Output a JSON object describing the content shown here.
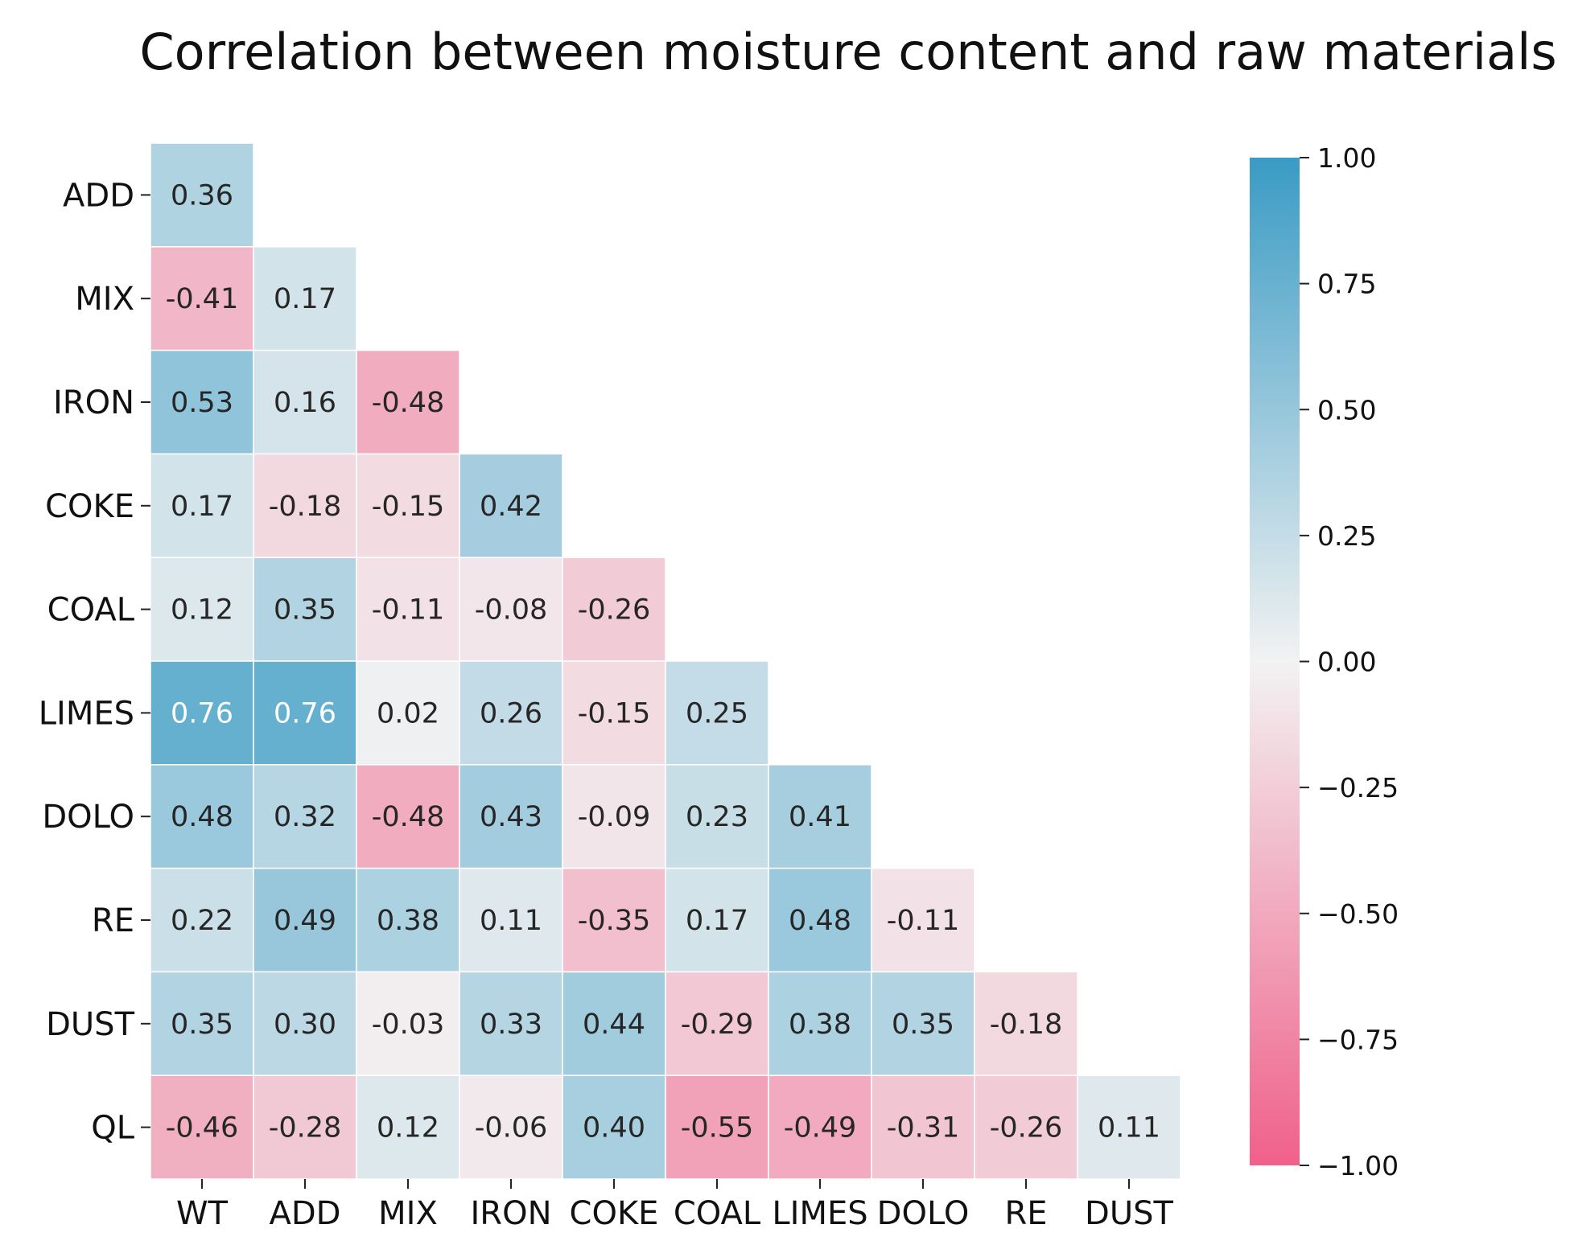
{
  "chart_data": {
    "type": "heatmap",
    "title": "Correlation between moisture content and raw materials",
    "xlabel": "",
    "ylabel": "",
    "x_categories": [
      "WT",
      "ADD",
      "MIX",
      "IRON",
      "COKE",
      "COAL",
      "LIMES",
      "DOLO",
      "RE",
      "DUST"
    ],
    "y_categories": [
      "ADD",
      "MIX",
      "IRON",
      "COKE",
      "COAL",
      "LIMES",
      "DOLO",
      "RE",
      "DUST",
      "QL"
    ],
    "values": [
      [
        0.36
      ],
      [
        -0.41,
        0.17
      ],
      [
        0.53,
        0.16,
        -0.48
      ],
      [
        0.17,
        -0.18,
        -0.15,
        0.42
      ],
      [
        0.12,
        0.35,
        -0.11,
        -0.08,
        -0.26
      ],
      [
        0.76,
        0.76,
        0.02,
        0.26,
        -0.15,
        0.25
      ],
      [
        0.48,
        0.32,
        -0.48,
        0.43,
        -0.09,
        0.23,
        0.41
      ],
      [
        0.22,
        0.49,
        0.38,
        0.11,
        -0.35,
        0.17,
        0.48,
        -0.11
      ],
      [
        0.35,
        0.3,
        -0.03,
        0.33,
        0.44,
        -0.29,
        0.38,
        0.35,
        -0.18
      ],
      [
        -0.46,
        -0.28,
        0.12,
        -0.06,
        0.4,
        -0.55,
        -0.49,
        -0.31,
        -0.26,
        0.11
      ]
    ],
    "value_labels": [
      [
        "0.36"
      ],
      [
        "-0.41",
        "0.17"
      ],
      [
        "0.53",
        "0.16",
        "-0.48"
      ],
      [
        "0.17",
        "-0.18",
        "-0.15",
        "0.42"
      ],
      [
        "0.12",
        "0.35",
        "-0.11",
        "-0.08",
        "-0.26"
      ],
      [
        "0.76",
        "0.76",
        "0.02",
        "0.26",
        "-0.15",
        "0.25"
      ],
      [
        "0.48",
        "0.32",
        "-0.48",
        "0.43",
        "-0.09",
        "0.23",
        "0.41"
      ],
      [
        "0.22",
        "0.49",
        "0.38",
        "0.11",
        "-0.35",
        "0.17",
        "0.48",
        "-0.11"
      ],
      [
        "0.35",
        "0.30",
        "-0.03",
        "0.33",
        "0.44",
        "-0.29",
        "0.38",
        "0.35",
        "-0.18"
      ],
      [
        "-0.46",
        "-0.28",
        "0.12",
        "-0.06",
        "0.40",
        "-0.55",
        "-0.49",
        "-0.31",
        "-0.26",
        "0.11"
      ]
    ],
    "vmin": -1.0,
    "vmax": 1.0,
    "colorbar": {
      "ticks": [
        1.0,
        0.75,
        0.5,
        0.25,
        0.0,
        -0.25,
        -0.5,
        -0.75,
        -1.0
      ],
      "tick_labels": [
        "1.00",
        "0.75",
        "0.50",
        "0.25",
        "0.00",
        "−0.25",
        "−0.50",
        "−0.75",
        "−1.00"
      ],
      "position": "right"
    },
    "colors": {
      "negative_end": "#f0608a",
      "center": "#f2f2f2",
      "positive_end": "#3a9bc4",
      "dark_text": "#262626",
      "light_text": "#ffffff",
      "cell_border": "#ffffff"
    }
  }
}
